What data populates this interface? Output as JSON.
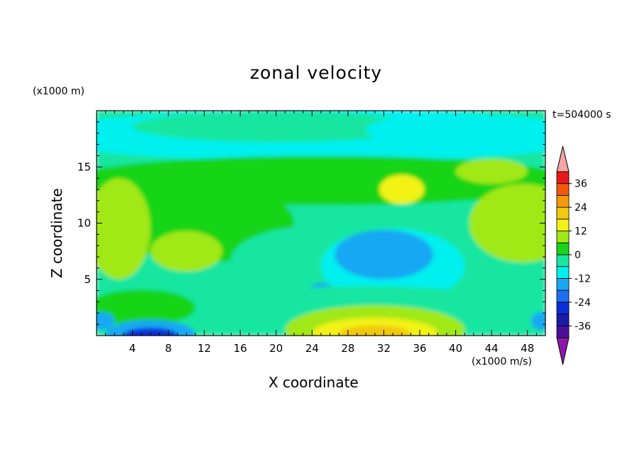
{
  "chart_data": {
    "type": "heatmap",
    "title": "zonal velocity",
    "xlabel": "X coordinate",
    "ylabel": "Z coordinate",
    "x_units": "(x1000 m/s)",
    "y_units": "(x1000 m)",
    "time_label": "t=504000 s",
    "xlim": [
      0,
      50
    ],
    "ylim": [
      0,
      20
    ],
    "x_ticks": [
      4,
      8,
      12,
      16,
      20,
      24,
      28,
      32,
      36,
      40,
      44,
      48
    ],
    "y_ticks": [
      5,
      10,
      15
    ],
    "colorbar": {
      "levels": [
        -42,
        -36,
        -30,
        -24,
        -18,
        -12,
        -6,
        0,
        6,
        12,
        18,
        24,
        30,
        36,
        42
      ],
      "tick_labels": [
        "36",
        "24",
        "12",
        "0",
        "-12",
        "-24",
        "-36"
      ],
      "tick_values": [
        36,
        24,
        12,
        0,
        -12,
        -24,
        -36
      ],
      "colors": [
        "#8B18A8",
        "#4A0F9A",
        "#1A1AA8",
        "#0A2FD8",
        "#1E6EF2",
        "#18A8F2",
        "#00F0F0",
        "#18E6A0",
        "#18D418",
        "#A0E818",
        "#F2F218",
        "#F2C810",
        "#F29A0A",
        "#F25A0A",
        "#E81818",
        "#F5A5A5"
      ],
      "extend": "both"
    },
    "features": [
      {
        "x": 32,
        "z": 7.5,
        "value": -16
      },
      {
        "x": 6,
        "z": 0.3,
        "value": -26
      },
      {
        "x": 31,
        "z": 0.7,
        "value": 24
      },
      {
        "x": 2,
        "z": 9,
        "value": 11
      },
      {
        "x": 48,
        "z": 10,
        "value": 13
      },
      {
        "x": 44,
        "z": 14.6,
        "value": 12
      },
      {
        "x": 34,
        "z": 13.2,
        "value": 13
      },
      {
        "x": 8,
        "z": 7.8,
        "value": 10
      },
      {
        "x": 25,
        "z": 4.2,
        "value": -14
      },
      {
        "x": 29,
        "z": 17.5,
        "value": -10
      }
    ]
  }
}
